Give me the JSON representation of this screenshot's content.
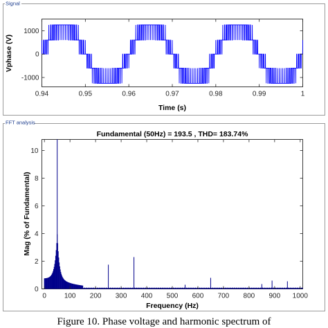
{
  "panels": {
    "signal_title": "Signal",
    "fft_title": "FFT analysis"
  },
  "caption": "Figure 10. Phase voltage and harmonic spectrum of",
  "chart_data": [
    {
      "type": "line",
      "name": "signal",
      "title": "",
      "xlabel": "Time (s)",
      "ylabel": "Vphase (V)",
      "xlim": [
        0.94,
        1.0
      ],
      "ylim": [
        -1400,
        1500
      ],
      "xticks": [
        0.94,
        0.95,
        0.96,
        0.97,
        0.98,
        0.99,
        1
      ],
      "xtick_labels": [
        "0.94",
        "0.95",
        "0.96",
        "0.97",
        "0.98",
        "0.99",
        "1"
      ],
      "yticks": [
        1000,
        0,
        -1000
      ],
      "ytick_labels": [
        "1000",
        "0",
        "-1000"
      ],
      "grid": false,
      "color": "#0000ff",
      "fundamental_hz": 50,
      "pwm_switching_hz": 2500,
      "voltage_levels": [
        -1250,
        -600,
        0,
        600,
        1250
      ],
      "envelope_points": {
        "t": [
          0.94,
          0.9425,
          0.945,
          0.95,
          0.955,
          0.96,
          0.965,
          0.97,
          0.975,
          0.98,
          0.985,
          0.99,
          0.995,
          1.0
        ],
        "v": [
          0,
          1250,
          1250,
          0,
          -1250,
          0,
          1250,
          0,
          -1250,
          0,
          1250,
          0,
          -1250,
          0
        ]
      }
    },
    {
      "type": "bar",
      "name": "fft",
      "title": "Fundamental (50Hz) = 193.5 , THD= 183.74%",
      "xlabel": "Frequency (Hz)",
      "ylabel": "Mag (% of Fundamental)",
      "xlim": [
        -10,
        1010
      ],
      "ylim": [
        0,
        10.8
      ],
      "xticks": [
        0,
        100,
        200,
        300,
        400,
        500,
        600,
        700,
        800,
        900,
        1000
      ],
      "xtick_labels": [
        "0",
        "100",
        "200",
        "300",
        "400",
        "500",
        "600",
        "700",
        "800",
        "900",
        "1000"
      ],
      "yticks": [
        0,
        2,
        4,
        6,
        8,
        10
      ],
      "ytick_labels": [
        "0",
        "2",
        "4",
        "6",
        "8",
        "10"
      ],
      "grid": false,
      "color": "#00008b",
      "peaks": [
        {
          "freq": 50,
          "mag": 10.8
        },
        {
          "freq": 250,
          "mag": 1.75
        },
        {
          "freq": 350,
          "mag": 2.3
        },
        {
          "freq": 550,
          "mag": 0.3
        },
        {
          "freq": 650,
          "mag": 0.8
        },
        {
          "freq": 850,
          "mag": 0.35
        },
        {
          "freq": 890,
          "mag": 0.6
        },
        {
          "freq": 950,
          "mag": 0.55
        }
      ],
      "floor_level": 0.05,
      "lobe": {
        "center": 50,
        "start": 0,
        "end": 150,
        "base_level": 0.75
      }
    }
  ]
}
